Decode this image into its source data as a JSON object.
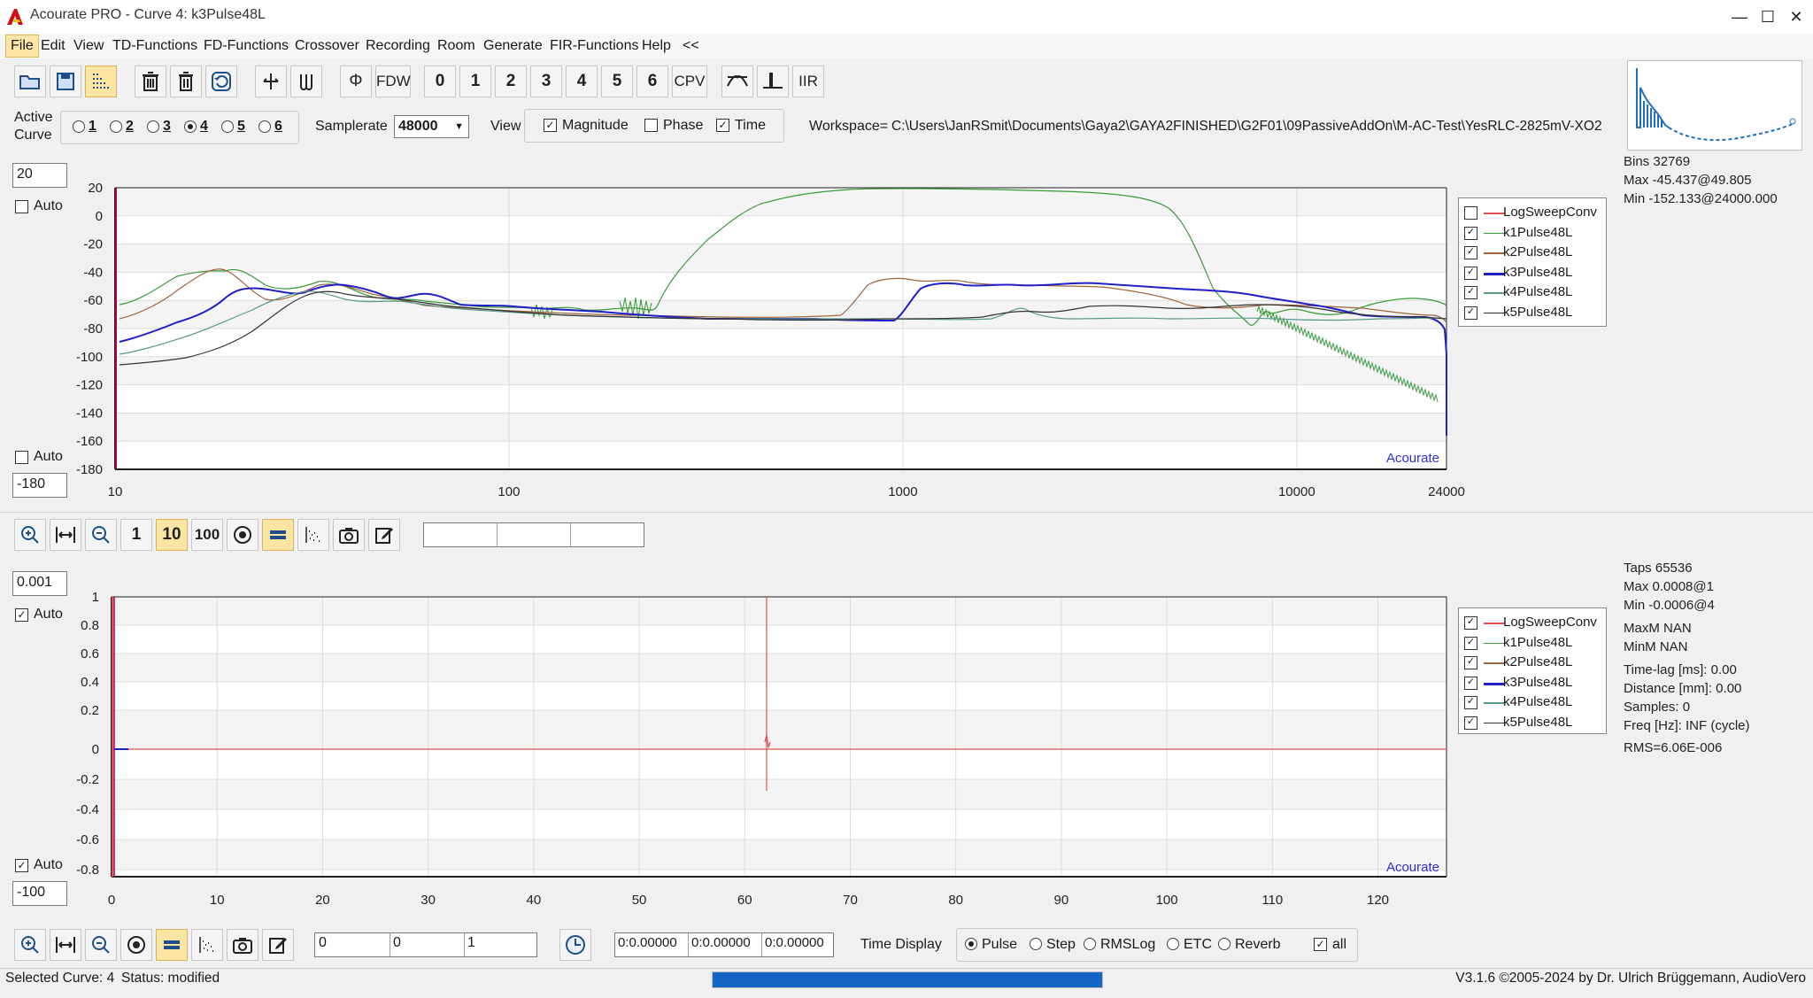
{
  "window": {
    "title": "Acourate PRO - Curve 4: k3Pulse48L",
    "min_glyph": "—",
    "max_glyph": "☐",
    "close_glyph": "✕"
  },
  "menu": {
    "items": [
      "File",
      "Edit",
      "View",
      "TD-Functions",
      "FD-Functions",
      "Crossover",
      "Recording",
      "Room",
      "Generate",
      "FIR-Functions",
      "Help",
      "<<"
    ]
  },
  "toolbar": {
    "buttons": [
      "open",
      "save",
      "curves",
      "delete-all",
      "delete",
      "undo",
      "flip",
      "phase-edit",
      "Φ",
      "FDW",
      "0",
      "1",
      "2",
      "3",
      "4",
      "5",
      "6",
      "CPV",
      "crossover",
      "pulse",
      "IIR"
    ]
  },
  "active_curve": {
    "label_line1": "Active",
    "label_line2": "Curve",
    "options": [
      "1",
      "2",
      "3",
      "4",
      "5",
      "6"
    ],
    "selected": "4"
  },
  "samplerate": {
    "label": "Samplerate",
    "value": "48000"
  },
  "view": {
    "label": "View",
    "magnitude": "Magnitude",
    "phase": "Phase",
    "time": "Time",
    "magnitude_checked": true,
    "phase_checked": false,
    "time_checked": true
  },
  "workspace": {
    "label": "Workspace=",
    "path": "C:\\Users\\JanRSmit\\Documents\\Gaya2\\GAYA2FINISHED\\G2F01\\09PassiveAddOn\\M-AC-Test\\YesRLC-2825mV-XO2"
  },
  "fd_plot": {
    "top_value": "20",
    "bottom_value": "-180",
    "auto_label": "Auto",
    "y_ticks": [
      "20",
      "0",
      "-20",
      "-40",
      "-60",
      "-80",
      "-100",
      "-120",
      "-140",
      "-160",
      "-180"
    ],
    "x_ticks": [
      "10",
      "100",
      "1000",
      "10000",
      "24000"
    ],
    "watermark": "Acourate",
    "info": [
      "Bins 32769",
      "Max -45.437@49.805",
      "Min -152.133@24000.000"
    ]
  },
  "fd_legend": [
    {
      "name": "LogSweepConv",
      "color": "#e05050",
      "checked": false
    },
    {
      "name": "k1Pulse48L",
      "color": "#3a9a3a",
      "checked": true
    },
    {
      "name": "k2Pulse48L",
      "color": "#a0643c",
      "checked": true
    },
    {
      "name": "k3Pulse48L",
      "color": "#2020c8",
      "checked": true
    },
    {
      "name": "k4Pulse48L",
      "color": "#5a9a8a",
      "checked": true
    },
    {
      "name": "k5Pulse48L",
      "color": "#333333",
      "checked": true
    }
  ],
  "zoom_toolbar": {
    "buttons": [
      "zoom-in",
      "fit-width",
      "zoom-out",
      "1",
      "10",
      "100",
      "target",
      "bar",
      "scatter",
      "camera",
      "edit"
    ]
  },
  "td_plot": {
    "top_value": "0.001",
    "bottom_value": "-100",
    "auto_label": "Auto",
    "y_ticks": [
      "1",
      "0.8",
      "0.6",
      "0.4",
      "0.2",
      "0",
      "-0.2",
      "-0.4",
      "-0.6",
      "-0.8"
    ],
    "x_ticks": [
      "0",
      "10",
      "20",
      "30",
      "40",
      "50",
      "60",
      "70",
      "80",
      "90",
      "100",
      "110",
      "120"
    ],
    "watermark": "Acourate",
    "info": [
      "Taps 65536",
      "Max 0.0008@1",
      "Min -0.0006@4",
      "MaxM NAN",
      "MinM NAN",
      "Time-lag [ms]: 0.00",
      "Distance [mm]: 0.00",
      "Samples:  0",
      "Freq [Hz]: INF (cycle)",
      "RMS=6.06E-006"
    ]
  },
  "td_legend": [
    {
      "name": "LogSweepConv",
      "color": "#e05050",
      "checked": true
    },
    {
      "name": "k1Pulse48L",
      "color": "#3a9a3a",
      "checked": true
    },
    {
      "name": "k2Pulse48L",
      "color": "#a0643c",
      "checked": true
    },
    {
      "name": "k3Pulse48L",
      "color": "#2020c8",
      "checked": true
    },
    {
      "name": "k4Pulse48L",
      "color": "#5a9a8a",
      "checked": true
    },
    {
      "name": "k5Pulse48L",
      "color": "#333333",
      "checked": true
    }
  ],
  "bottom_bar": {
    "fields1": [
      "0",
      "0",
      "1"
    ],
    "fields2": [
      "0:0.00000",
      "0:0.00000",
      "0:0.00000"
    ],
    "time_display_label": "Time Display",
    "modes": [
      "Pulse",
      "Step",
      "RMSLog",
      "ETC",
      "Reverb"
    ],
    "selected_mode": "Pulse",
    "all_label": "all"
  },
  "status": {
    "selected": "Selected Curve: 4",
    "state": "Status: modified",
    "progress": 1.0,
    "version": "V3.1.6 ©2005-2024 by Dr. Ulrich Brüggemann, AudioVero"
  }
}
